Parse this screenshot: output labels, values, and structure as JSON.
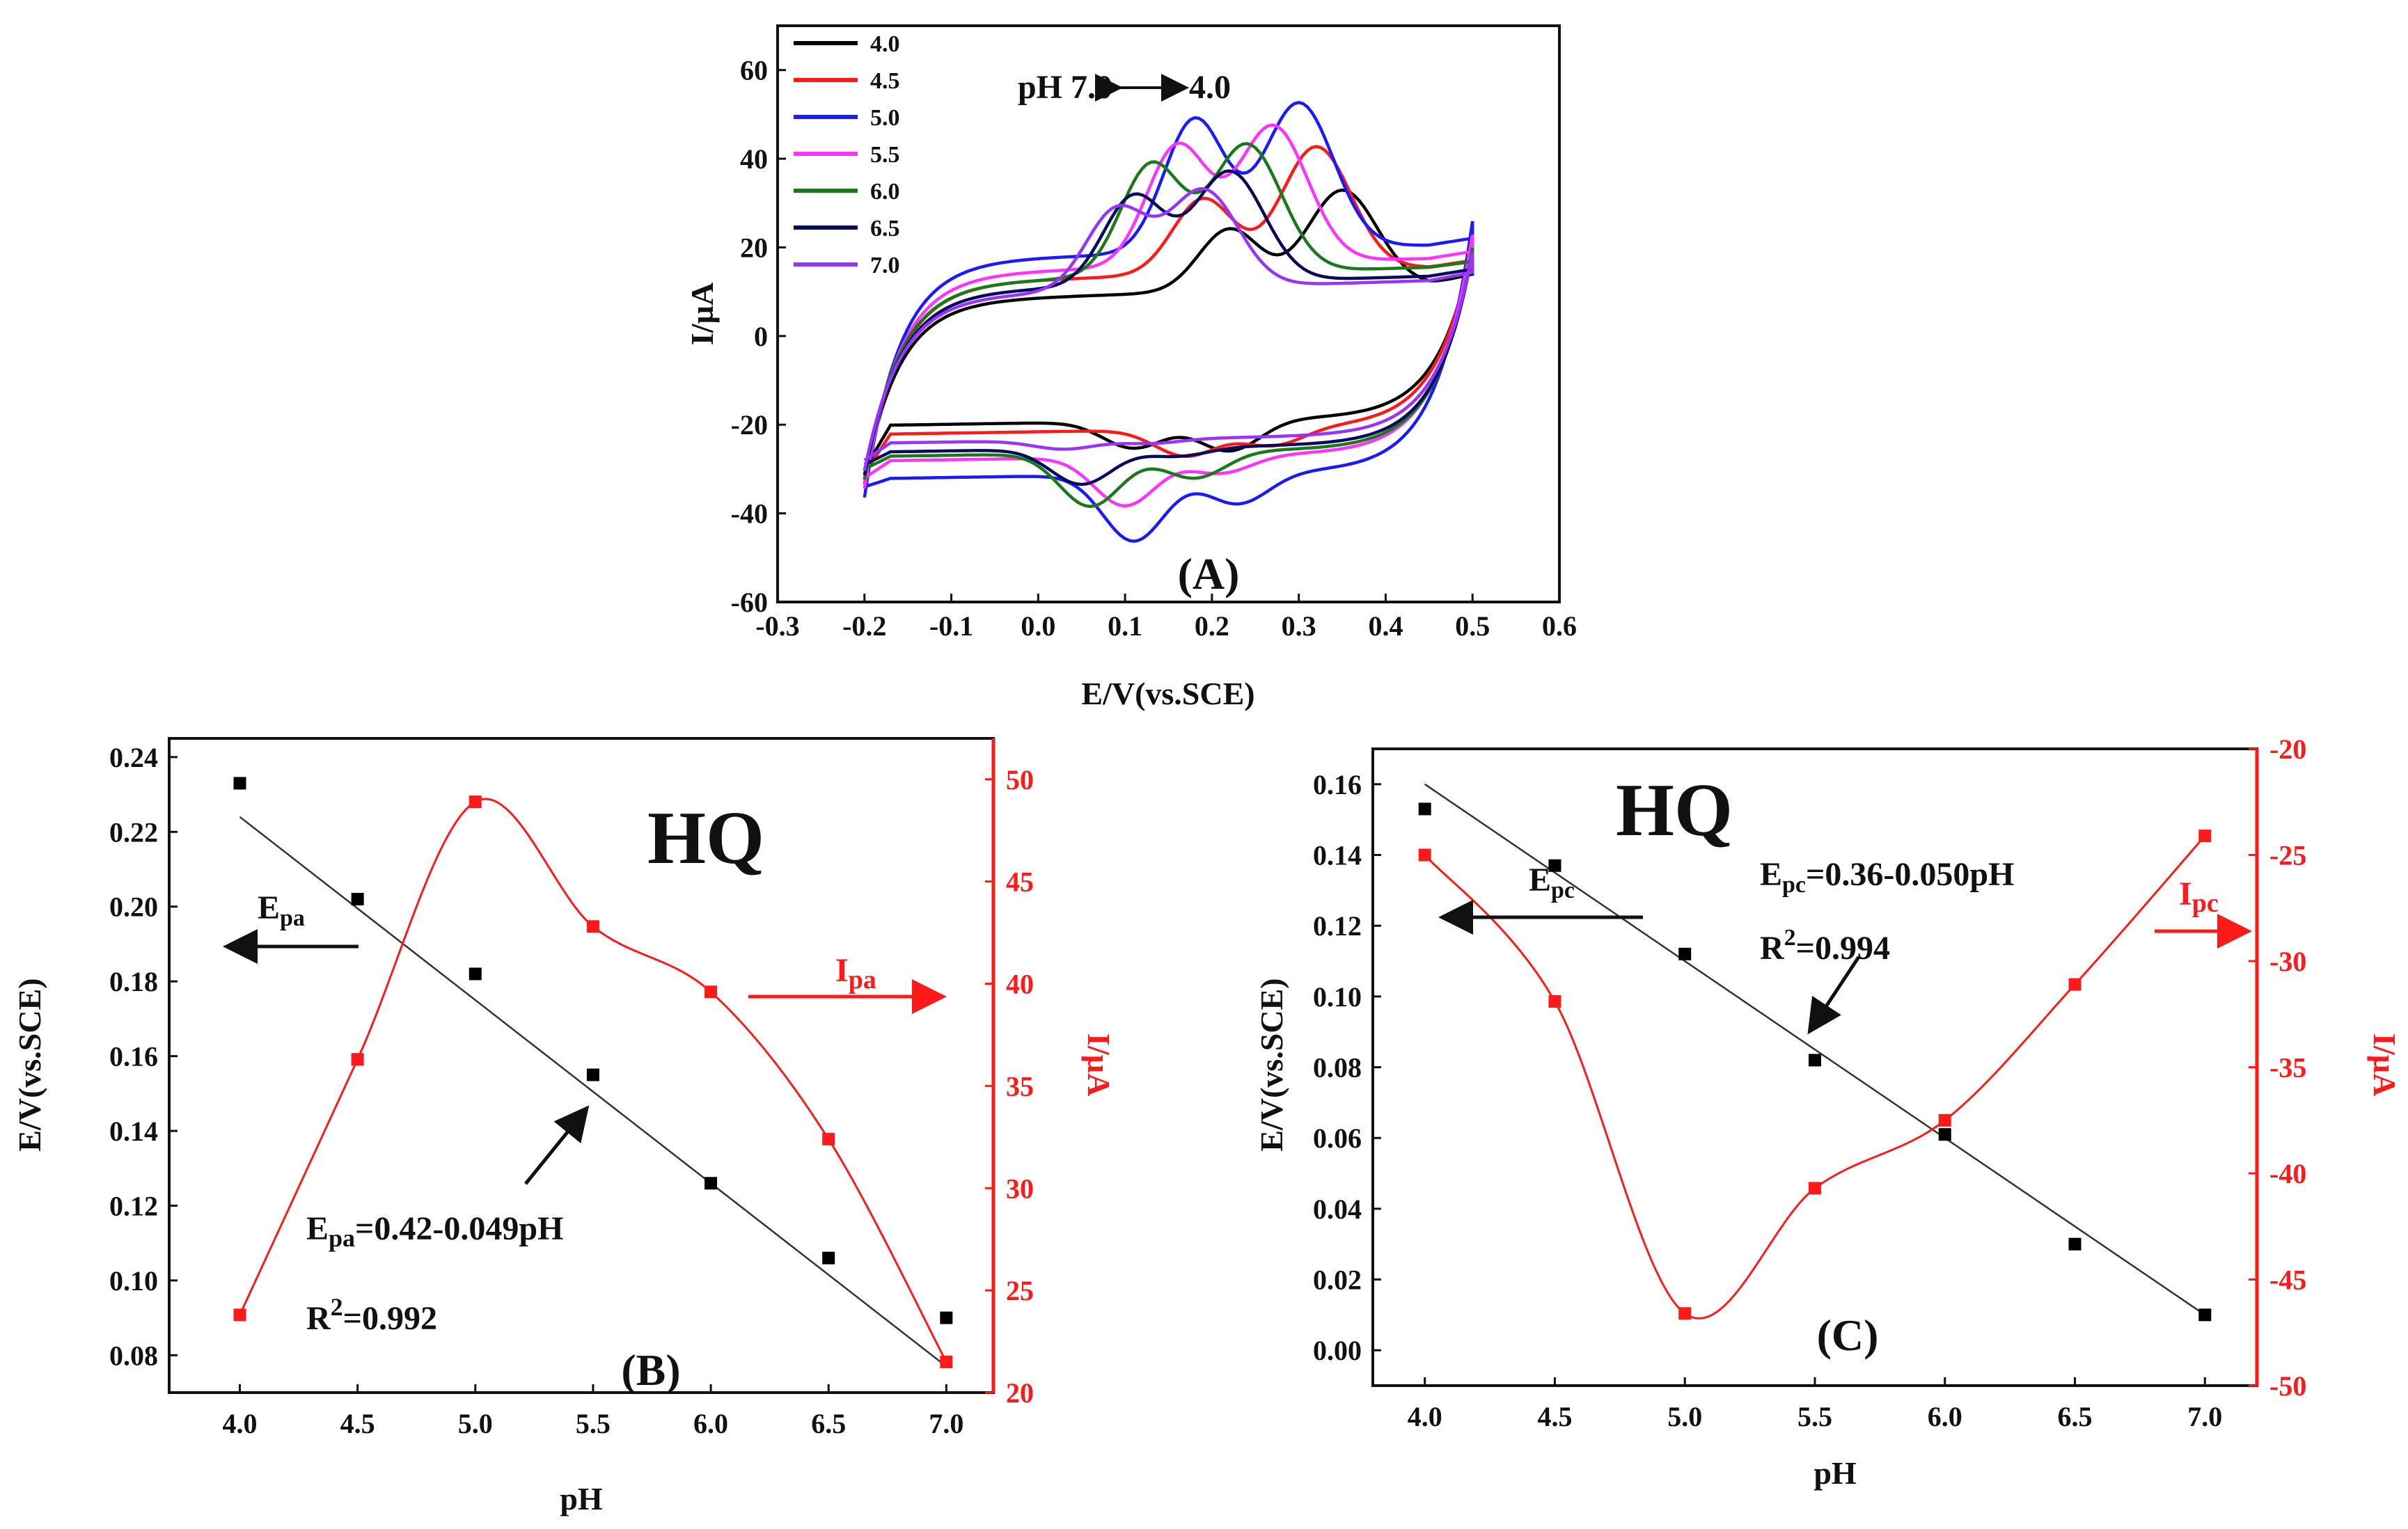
{
  "figure": {
    "panels": [
      "(A)",
      "(B)",
      "(C)"
    ]
  },
  "chart_data": [
    {
      "panel": "A",
      "type": "line",
      "title": "",
      "label": "(A)",
      "xlabel": "E/V(vs.SCE)",
      "ylabel": "I/µA",
      "xlim": [
        -0.3,
        0.6
      ],
      "ylim": [
        -60,
        70
      ],
      "xticks": [
        "-0.3",
        "-0.2",
        "-0.1",
        "0.0",
        "0.1",
        "0.2",
        "0.3",
        "0.4",
        "0.5",
        "0.6"
      ],
      "yticks": [
        "-60",
        "-40",
        "-20",
        "0",
        "20",
        "40",
        "60"
      ],
      "annotation": "pH 7.0 ⟷ 4.0",
      "annotation_left": "pH 7.0",
      "annotation_right": "4.0",
      "legend_position": "top-left",
      "series": [
        {
          "name": "4.0",
          "color": "#000000",
          "pa": [
            0.35,
            32
          ],
          "pa2": [
            0.22,
            24
          ],
          "pc": [
            0.22,
            -26
          ],
          "pc2": [
            0.11,
            -25
          ],
          "base_top": 10,
          "base_bot": -19,
          "end": 19,
          "start_low": -30
        },
        {
          "name": "4.5",
          "color": "#ff1a1a",
          "pa": [
            0.32,
            42
          ],
          "pa2": [
            0.19,
            31
          ],
          "pc": [
            0.27,
            -25
          ],
          "pc2": [
            0.17,
            -27
          ],
          "base_top": 14,
          "base_bot": -21,
          "end": 20,
          "start_low": -31
        },
        {
          "name": "5.0",
          "color": "#1a1aff",
          "pa": [
            0.3,
            52
          ],
          "pa2": [
            0.18,
            49
          ],
          "pc": [
            0.23,
            -38
          ],
          "pc2": [
            0.11,
            -46
          ],
          "base_top": 19,
          "base_bot": -31,
          "end": 25,
          "start_low": -34
        },
        {
          "name": "5.5",
          "color": "#ff33ff",
          "pa": [
            0.27,
            47
          ],
          "pa2": [
            0.16,
            43
          ],
          "pc": [
            0.21,
            -31
          ],
          "pc2": [
            0.1,
            -38
          ],
          "base_top": 16,
          "base_bot": -27,
          "end": 22,
          "start_low": -32
        },
        {
          "name": "6.0",
          "color": "#1a7a1a",
          "pa": [
            0.24,
            43
          ],
          "pa2": [
            0.13,
            39
          ],
          "pc": [
            0.18,
            -32
          ],
          "pc2": [
            0.06,
            -38
          ],
          "base_top": 14,
          "base_bot": -26,
          "end": 19,
          "start_low": -30
        },
        {
          "name": "6.5",
          "color": "#0a0a5a",
          "pa": [
            0.22,
            37
          ],
          "pa2": [
            0.11,
            32
          ],
          "pc": [
            0.16,
            -27
          ],
          "pc2": [
            0.05,
            -33
          ],
          "base_top": 12,
          "base_bot": -25,
          "end": 18,
          "start_low": -29
        },
        {
          "name": "7.0",
          "color": "#9933ff",
          "pa": [
            0.19,
            33
          ],
          "pa2": [
            0.09,
            29
          ],
          "pc": [
            0.13,
            -24
          ],
          "pc2": [
            0.03,
            -25
          ],
          "base_top": 11,
          "base_bot": -23,
          "end": 18,
          "start_low": -28
        }
      ]
    },
    {
      "panel": "B",
      "type": "scatter",
      "label": "(B)",
      "title": "HQ",
      "xlabel": "pH",
      "ylabel": "E/V(vs.SCE)",
      "ylabel_right": "I/µA",
      "xlim": [
        3.7,
        7.2
      ],
      "ylim": [
        0.07,
        0.245
      ],
      "ylim_right": [
        20,
        52
      ],
      "xticks": [
        "4.0",
        "4.5",
        "5.0",
        "5.5",
        "6.0",
        "6.5",
        "7.0"
      ],
      "yticks": [
        "0.08",
        "0.10",
        "0.12",
        "0.14",
        "0.16",
        "0.18",
        "0.20",
        "0.22",
        "0.24"
      ],
      "yticks_right": [
        "20",
        "25",
        "30",
        "35",
        "40",
        "45",
        "50"
      ],
      "x": [
        4.0,
        4.5,
        5.0,
        5.5,
        6.0,
        6.5,
        7.0
      ],
      "series": [
        {
          "name": "Epa",
          "axis": "left",
          "color": "#000000",
          "values": [
            0.233,
            0.202,
            0.182,
            0.155,
            0.126,
            0.106,
            0.09
          ]
        },
        {
          "name": "Ipa",
          "axis": "right",
          "color": "#ff1a1a",
          "values": [
            23.8,
            36.3,
            48.9,
            42.8,
            39.6,
            32.4,
            21.5
          ]
        }
      ],
      "fit": {
        "intercept": 0.42,
        "slope": -0.049,
        "from": 4.0,
        "to": 7.0
      },
      "equation": "Epa=0.42-0.049pH",
      "equation_sub": "pa",
      "equation_rest": "=0.42-0.049pH",
      "r2": "R2=0.992",
      "r2_rest": "=0.992",
      "left_arrow_label": "Epa",
      "right_arrow_label": "Ipa",
      "sub_label": "pa"
    },
    {
      "panel": "C",
      "type": "scatter",
      "label": "(C)",
      "title": "HQ",
      "xlabel": "pH",
      "ylabel": "E/V(vs.SCE)",
      "ylabel_right": "I/µA",
      "xlim": [
        3.8,
        7.2
      ],
      "ylim": [
        -0.01,
        0.17
      ],
      "ylim_right": [
        -50,
        -20
      ],
      "xticks": [
        "4.0",
        "4.5",
        "5.0",
        "5.5",
        "6.0",
        "6.5",
        "7.0"
      ],
      "yticks": [
        "0.00",
        "0.02",
        "0.04",
        "0.06",
        "0.08",
        "0.10",
        "0.12",
        "0.14",
        "0.16"
      ],
      "yticks_right": [
        "-50",
        "-45",
        "-40",
        "-35",
        "-30",
        "-25",
        "-20"
      ],
      "x": [
        4.0,
        4.5,
        5.0,
        5.5,
        6.0,
        6.5,
        7.0
      ],
      "series": [
        {
          "name": "Epc",
          "axis": "left",
          "color": "#000000",
          "values": [
            0.153,
            0.137,
            0.112,
            0.082,
            0.061,
            0.03,
            0.01
          ]
        },
        {
          "name": "Ipc",
          "axis": "right",
          "color": "#ff1a1a",
          "values": [
            -25.0,
            -31.9,
            -46.6,
            -40.7,
            -37.5,
            -31.1,
            -24.1
          ]
        }
      ],
      "fit": {
        "intercept": 0.36,
        "slope": -0.05,
        "from": 4.0,
        "to": 7.0
      },
      "equation": "Epc=0.36-0.050pH",
      "equation_sub": "pc",
      "equation_rest": "=0.36-0.050pH",
      "r2": "R2=0.994",
      "r2_rest": "=0.994",
      "left_arrow_label": "Epc",
      "right_arrow_label": "Ipc",
      "sub_label": "pc"
    }
  ]
}
